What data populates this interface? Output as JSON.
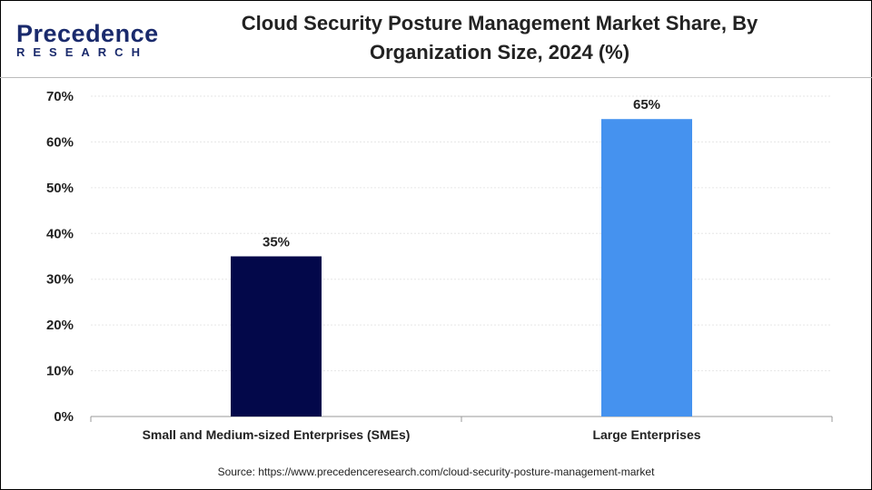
{
  "logo": {
    "line1": "Precedence",
    "line2": "RESEARCH"
  },
  "chart_data": {
    "type": "bar",
    "title": "Cloud Security Posture Management Market Share, By Organization Size, 2024 (%)",
    "title_lines": [
      "Cloud Security Posture Management Market Share, By",
      "Organization Size, 2024 (%)"
    ],
    "categories": [
      "Small and Medium-sized Enterprises (SMEs)",
      "Large Enterprises"
    ],
    "values": [
      35,
      65
    ],
    "data_labels": [
      "35%",
      "65%"
    ],
    "colors": [
      "#03084a",
      "#4592ef"
    ],
    "ylim": [
      0,
      70
    ],
    "yticks": [
      "0%",
      "10%",
      "20%",
      "30%",
      "40%",
      "50%",
      "60%",
      "70%"
    ],
    "grid": true,
    "xlabel": "",
    "ylabel": ""
  },
  "source": "Source: https://www.precedenceresearch.com/cloud-security-posture-management-market"
}
